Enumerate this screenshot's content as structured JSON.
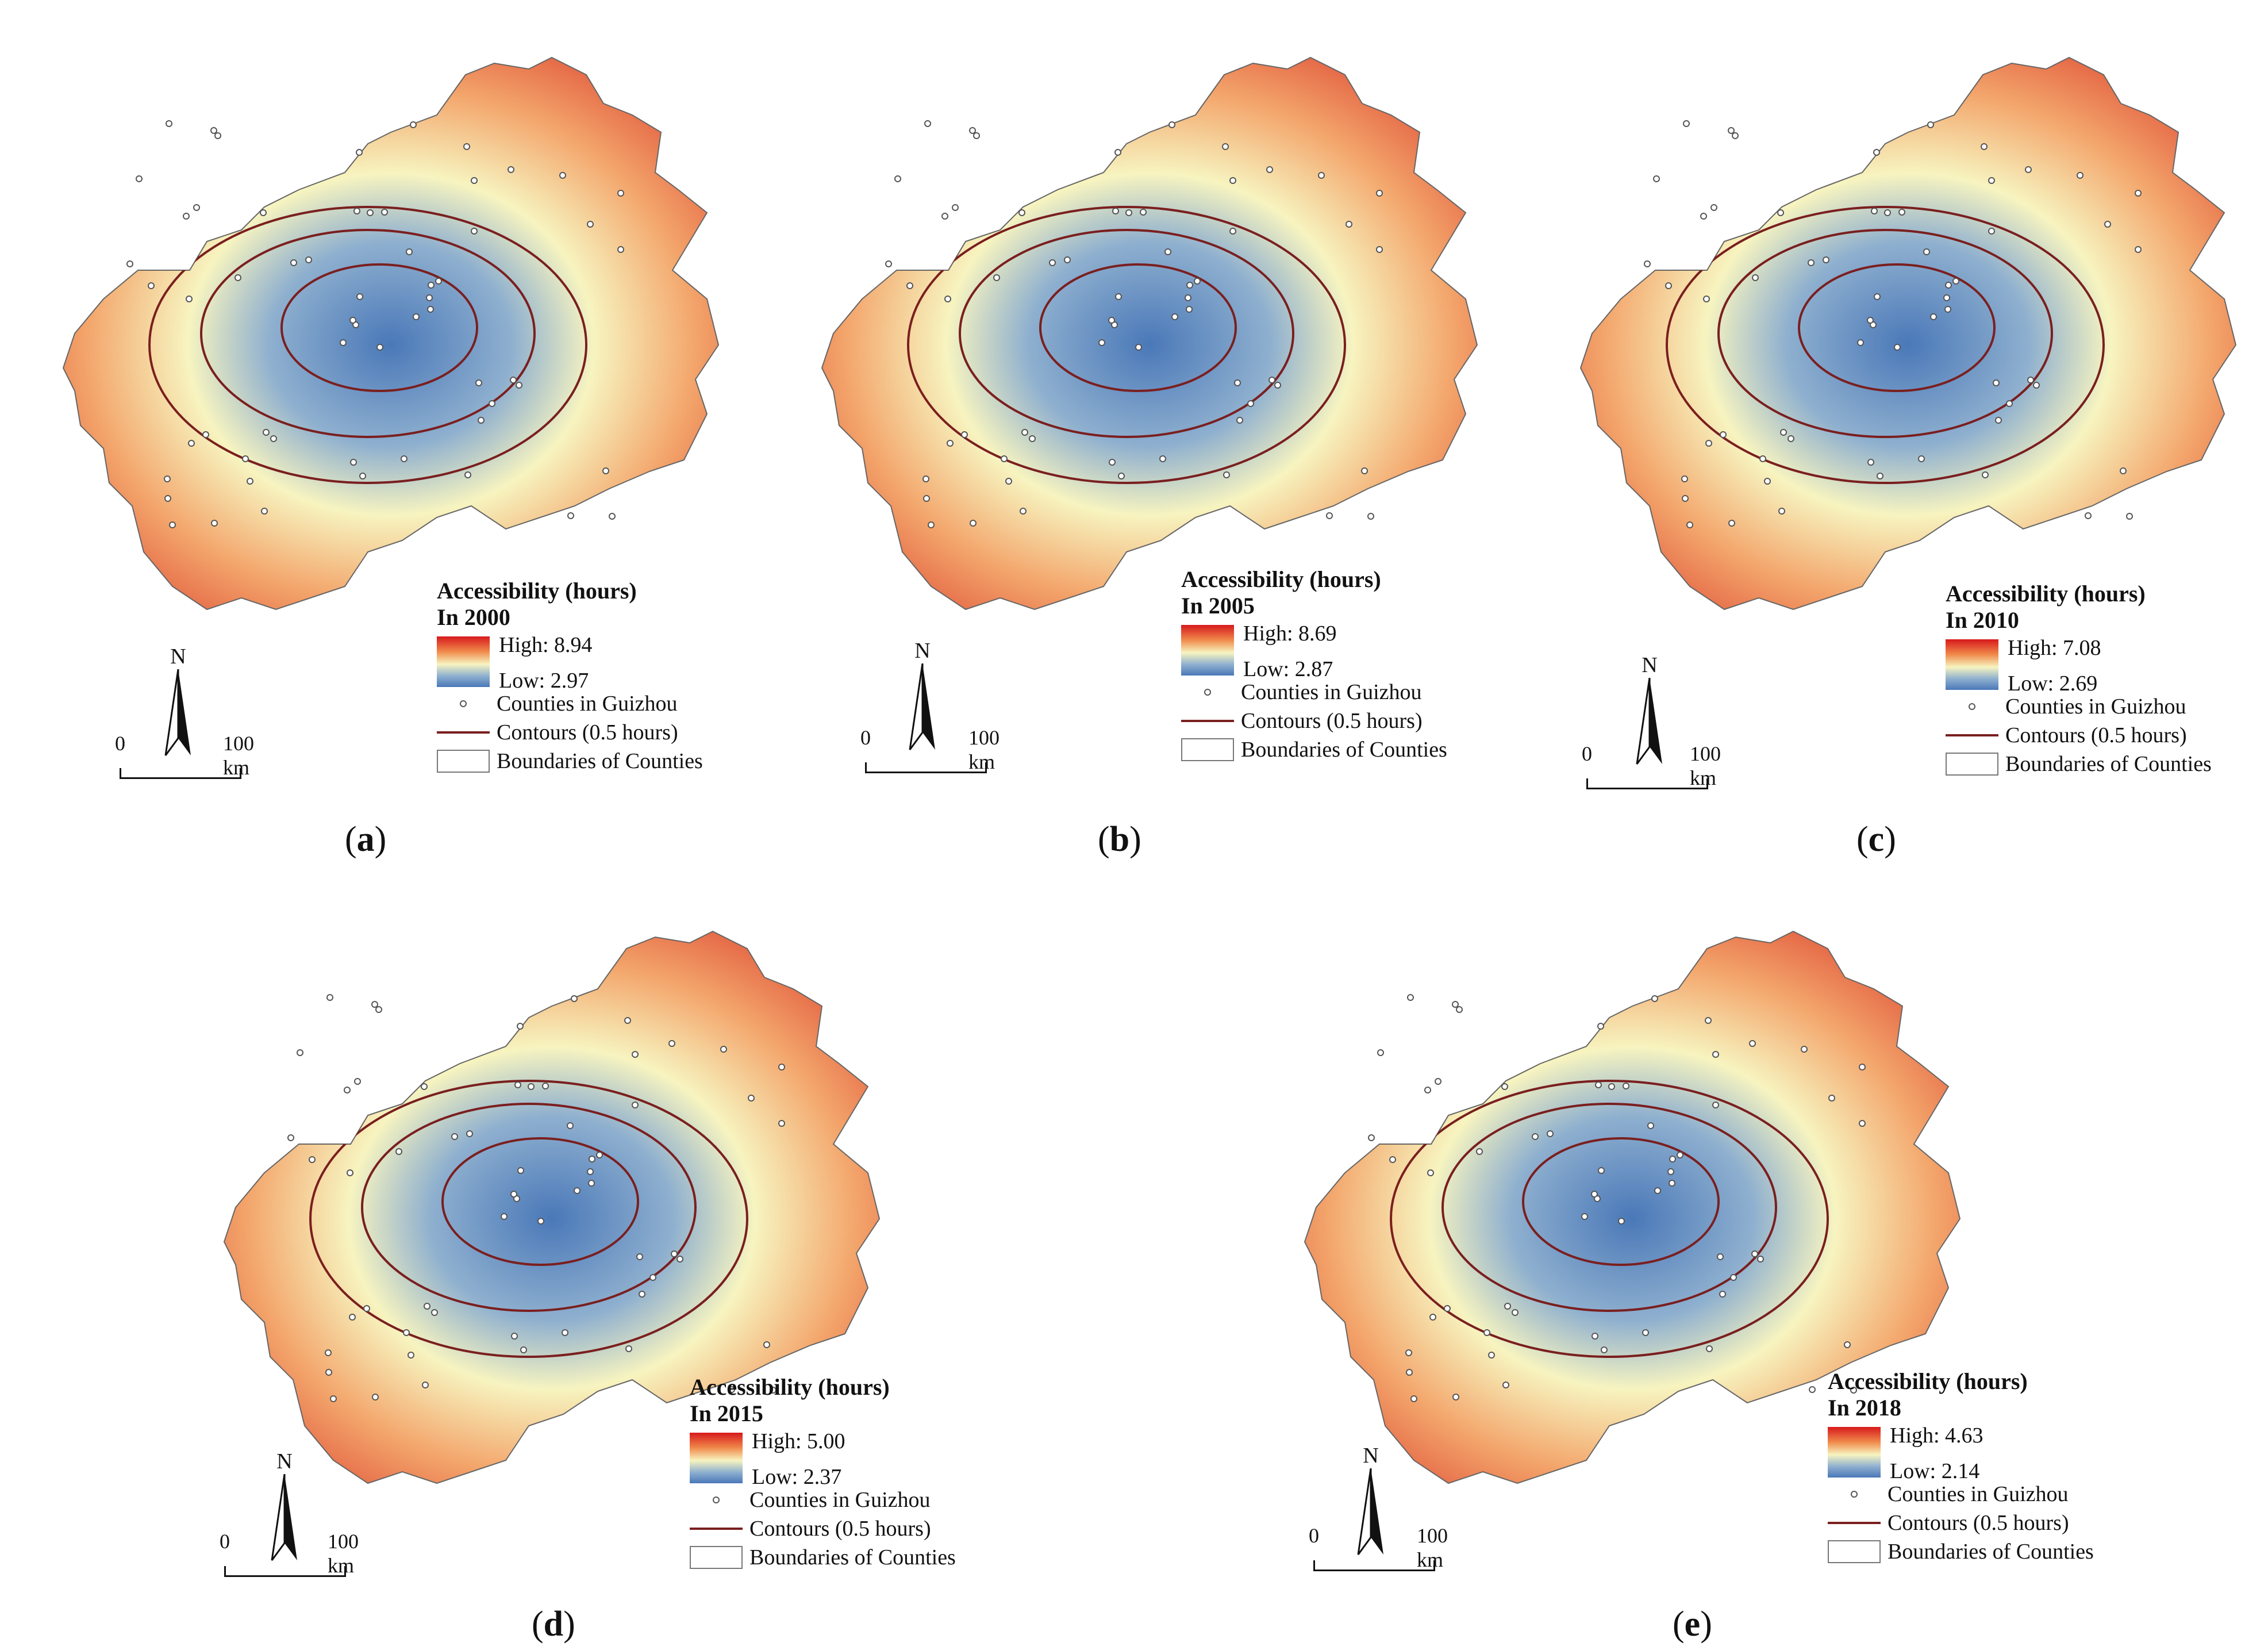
{
  "legend_title": "Accessibility (hours)",
  "legend_items": {
    "counties": "Counties in Guizhou",
    "contours": "Contours (0.5 hours)",
    "boundaries": "Boundaries of Counties"
  },
  "north_label": "N",
  "scale": {
    "zero": "0",
    "distance": "100 km"
  },
  "colors": {
    "high": "#d7191c",
    "mid": "#f7f4c0",
    "low": "#4a78b8",
    "contour": "#7a1f1f"
  },
  "panels": [
    {
      "year_label": "In 2000",
      "high": "High: 8.94",
      "low": "Low: 2.97",
      "caption_letter": "a"
    },
    {
      "year_label": "In 2005",
      "high": "High: 8.69",
      "low": "Low: 2.87",
      "caption_letter": "b"
    },
    {
      "year_label": "In 2010",
      "high": "High: 7.08",
      "low": "Low: 2.69",
      "caption_letter": "c"
    },
    {
      "year_label": "In 2015",
      "high": "High: 5.00",
      "low": "Low: 2.37",
      "caption_letter": "d"
    },
    {
      "year_label": "In 2018",
      "high": "High: 4.63",
      "low": "Low: 2.14",
      "caption_letter": "e"
    }
  ]
}
